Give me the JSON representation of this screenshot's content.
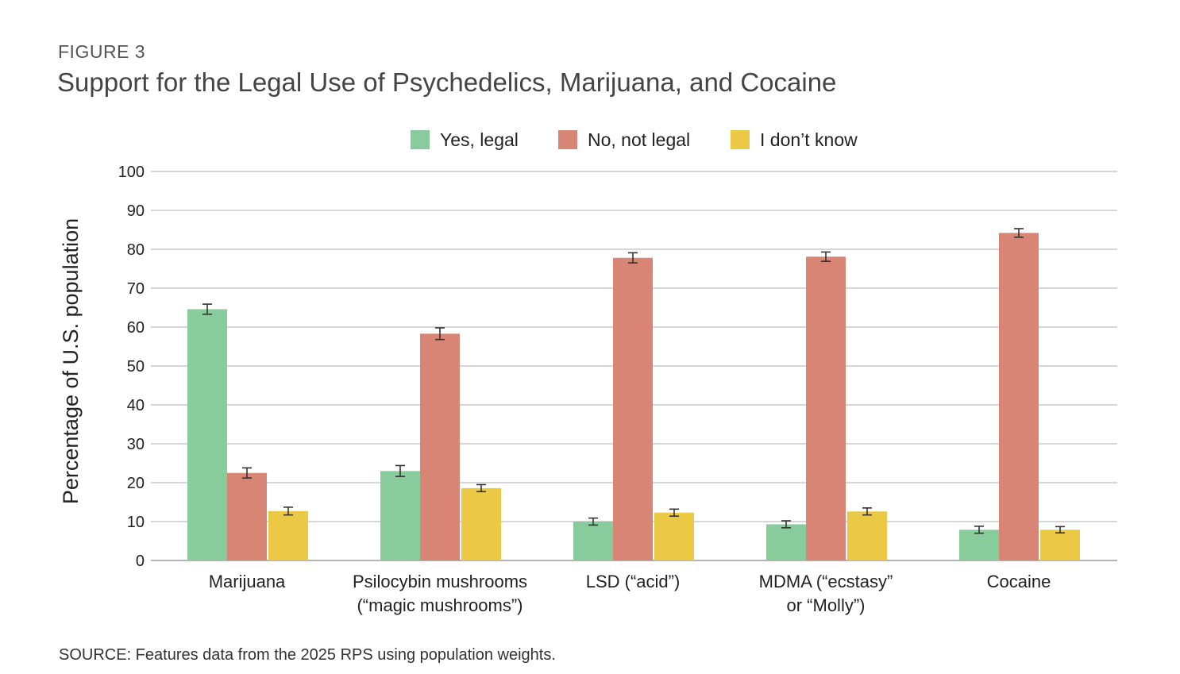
{
  "figure_label": "FIGURE 3",
  "source": "SOURCE: Features data from the 2025 RPS using population weights.",
  "colors": {
    "yes": "#88cc9c",
    "no": "#d98575",
    "dk": "#ecc945",
    "grid": "#bdbdbd",
    "error": "#333333"
  },
  "chart_data": {
    "type": "bar",
    "title": "Support for the Legal Use of Psychedelics, Marijuana, and Cocaine",
    "xlabel": "",
    "ylabel": "Percentage of U.S. population",
    "ylim": [
      0,
      100
    ],
    "yticks": [
      "0",
      "10",
      "20",
      "30",
      "40",
      "50",
      "60",
      "70",
      "80",
      "90",
      "100"
    ],
    "grid": true,
    "legend_position": "top-center",
    "categories": [
      [
        "Marijuana"
      ],
      [
        "Psilocybin mushrooms",
        "(“magic mushrooms”)"
      ],
      [
        "LSD (“acid”)"
      ],
      [
        "MDMA (“ecstasy”",
        "or “Molly”)"
      ],
      [
        "Cocaine"
      ]
    ],
    "series": [
      {
        "name": "Yes, legal",
        "key": "yes",
        "values": [
          64.6,
          23.0,
          10.0,
          9.3,
          7.9
        ],
        "error": [
          1.3,
          1.4,
          0.9,
          0.9,
          0.9
        ]
      },
      {
        "name": "No, not legal",
        "key": "no",
        "values": [
          22.5,
          58.3,
          77.8,
          78.1,
          84.2
        ],
        "error": [
          1.3,
          1.5,
          1.3,
          1.2,
          1.1
        ]
      },
      {
        "name": "I don’t know",
        "key": "dk",
        "values": [
          12.7,
          18.6,
          12.3,
          12.6,
          7.9
        ],
        "error": [
          1.0,
          0.9,
          0.9,
          0.9,
          0.8
        ]
      }
    ]
  }
}
